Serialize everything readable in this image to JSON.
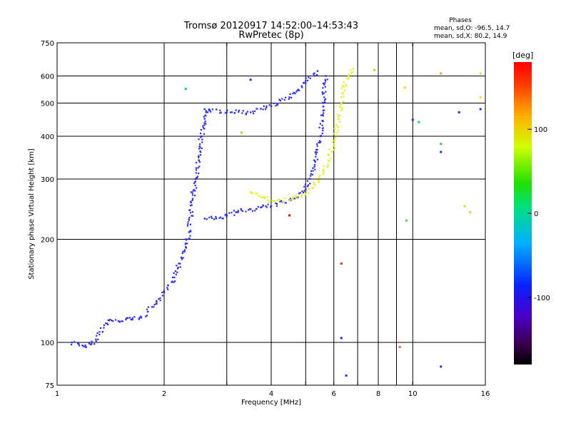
{
  "chart_data": {
    "type": "scatter",
    "title": "Tromsø 20120917 14:52:00–14:53:43",
    "subtitle": "RwPretec (8p)",
    "xlabel": "Frequency [MHz]",
    "ylabel": "Stationary phase Virtual Height [km]",
    "x_scale": "log",
    "y_scale": "log",
    "xlim": [
      1,
      16
    ],
    "ylim": [
      75,
      750
    ],
    "x_ticks": [
      1,
      2,
      4,
      6,
      8,
      10,
      16
    ],
    "x_tick_labels": [
      "1",
      "2",
      "4",
      "6",
      "8",
      "10",
      "16"
    ],
    "x_minor_gridlines": [
      3,
      5,
      7,
      9
    ],
    "y_ticks": [
      75,
      100,
      200,
      300,
      400,
      500,
      600,
      750
    ],
    "y_tick_labels": [
      "75",
      "100",
      "200",
      "300",
      "400",
      "500",
      "600",
      "750"
    ],
    "grid": true,
    "phases_box": {
      "heading": "Phases",
      "line_o": "mean, sd,O: -96.5, 14.7",
      "line_x": "mean, sd,X:  80.2, 14.9"
    },
    "colorbar": {
      "label": "[deg]",
      "range": [
        -180,
        180
      ],
      "ticks": [
        100,
        0,
        -100
      ],
      "tick_labels": [
        "100",
        "0",
        "-100"
      ],
      "placement": "right"
    },
    "series": [
      {
        "trace": "O-mode (blue, ~-100 deg)",
        "phase": -100,
        "color": "#2a2aff",
        "points": [
          [
            1.1,
            100
          ],
          [
            1.15,
            99
          ],
          [
            1.2,
            97
          ],
          [
            1.25,
            99
          ],
          [
            1.4,
            116
          ],
          [
            1.5,
            115
          ],
          [
            1.6,
            118
          ],
          [
            1.7,
            117
          ],
          [
            1.8,
            123
          ],
          [
            1.9,
            130
          ],
          [
            2.0,
            140
          ],
          [
            2.1,
            150
          ],
          [
            2.2,
            170
          ],
          [
            2.3,
            190
          ],
          [
            2.35,
            210
          ],
          [
            2.4,
            260
          ],
          [
            2.45,
            300
          ],
          [
            2.5,
            350
          ],
          [
            2.55,
            400
          ],
          [
            2.6,
            450
          ],
          [
            2.65,
            470
          ],
          [
            2.6,
            230
          ],
          [
            2.8,
            230
          ],
          [
            3.0,
            235
          ],
          [
            3.2,
            240
          ],
          [
            3.5,
            245
          ],
          [
            4.0,
            250
          ],
          [
            4.5,
            260
          ],
          [
            5.0,
            280
          ],
          [
            5.3,
            330
          ],
          [
            5.5,
            400
          ],
          [
            5.6,
            500
          ],
          [
            5.7,
            600
          ],
          [
            2.6,
            480
          ],
          [
            3.0,
            470
          ],
          [
            3.5,
            470
          ],
          [
            4.0,
            490
          ],
          [
            4.5,
            520
          ],
          [
            5.0,
            580
          ],
          [
            5.4,
            620
          ]
        ]
      },
      {
        "trace": "X-mode (yellow, ~80 deg)",
        "phase": 80,
        "color": "#e6f01e",
        "points": [
          [
            3.5,
            275
          ],
          [
            3.8,
            265
          ],
          [
            4.1,
            258
          ],
          [
            4.6,
            262
          ],
          [
            5.0,
            272
          ],
          [
            5.3,
            290
          ],
          [
            5.6,
            310
          ],
          [
            5.8,
            340
          ],
          [
            6.0,
            380
          ],
          [
            6.2,
            450
          ],
          [
            6.3,
            500
          ],
          [
            6.4,
            560
          ],
          [
            6.6,
            600
          ],
          [
            6.8,
            630
          ]
        ]
      }
    ],
    "scattered_points": [
      [
        2.3,
        550,
        "#00c0c0"
      ],
      [
        3.3,
        410,
        "#a0e020"
      ],
      [
        3.5,
        585,
        "#2a2aff"
      ],
      [
        4.5,
        235,
        "#ff0000"
      ],
      [
        6.3,
        170,
        "#ff2020"
      ],
      [
        6.5,
        80,
        "#2a2aff"
      ],
      [
        6.3,
        103,
        "#2a2aff"
      ],
      [
        7.8,
        625,
        "#f0c000"
      ],
      [
        9.2,
        97,
        "#ff6030"
      ],
      [
        9.5,
        555,
        "#f0d000"
      ],
      [
        9.6,
        227,
        "#40e060"
      ],
      [
        10.0,
        447,
        "#2a2aff"
      ],
      [
        10.4,
        440,
        "#00d0c0"
      ],
      [
        12.0,
        610,
        "#f0a000"
      ],
      [
        12.0,
        380,
        "#40c040"
      ],
      [
        12.0,
        360,
        "#2a2aff"
      ],
      [
        12.0,
        85,
        "#2a2aff"
      ],
      [
        13.5,
        470,
        "#2a2aff"
      ],
      [
        14.0,
        250,
        "#f0d000"
      ],
      [
        14.5,
        240,
        "#f0d000"
      ],
      [
        15.5,
        610,
        "#e0e020"
      ],
      [
        15.5,
        480,
        "#2a2aff"
      ],
      [
        15.5,
        520,
        "#f0e000"
      ]
    ]
  }
}
